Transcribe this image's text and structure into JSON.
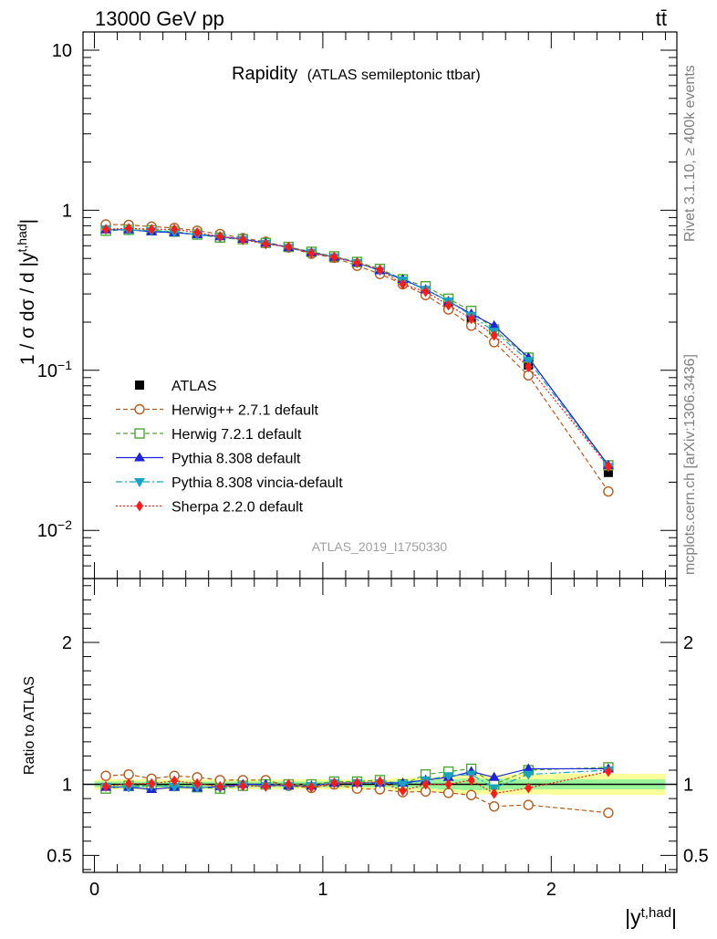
{
  "header": {
    "left": "13000 GeV pp",
    "right": "tt̄"
  },
  "side_labels": {
    "rivet": "Rivet 3.1.10, ≥ 400k events",
    "mcplots": "mcplots.cern.ch [arXiv:1306.3436]"
  },
  "plot_title": {
    "main": "Rapidity",
    "sub": "(ATLAS semileptonic ttbar)"
  },
  "analysis_id": "ATLAS_2019_I1750330",
  "colors": {
    "atlas": "#000000",
    "herwigpp": "#b35c1e",
    "herwig7": "#4da831",
    "pythia": "#1f23d9",
    "vincia": "#17a3c2",
    "sherpa": "#ff1a1a",
    "band_inner": "#9af59a",
    "band_outer": "#ffff99"
  },
  "chart_data": [
    {
      "type": "scatter",
      "panel": "main",
      "ylabel": "1 / σ dσ / d |y^{t,had}|",
      "yscale": "log",
      "ylim": [
        0.005,
        13
      ],
      "xlim": [
        -0.05,
        2.55
      ],
      "ytick_labels": [
        "10^{-2}",
        "10^{-1}",
        "1",
        "10"
      ],
      "legend_position": "lower-left",
      "x": [
        0.05,
        0.15,
        0.25,
        0.35,
        0.45,
        0.55,
        0.65,
        0.75,
        0.85,
        0.95,
        1.05,
        1.15,
        1.25,
        1.35,
        1.45,
        1.55,
        1.65,
        1.75,
        1.9,
        2.25
      ],
      "x_edges": [
        0.0,
        0.1,
        0.2,
        0.3,
        0.4,
        0.5,
        0.6,
        0.7,
        0.8,
        0.9,
        1.0,
        1.1,
        1.2,
        1.3,
        1.4,
        1.5,
        1.6,
        1.7,
        1.8,
        2.0,
        2.5
      ],
      "series": [
        {
          "name": "ATLAS",
          "key": "atlas",
          "marker": "square-filled",
          "line": "none",
          "values": [
            0.77,
            0.765,
            0.755,
            0.74,
            0.72,
            0.695,
            0.66,
            0.625,
            0.59,
            0.55,
            0.505,
            0.465,
            0.415,
            0.365,
            0.31,
            0.255,
            0.205,
            0.18,
            0.108,
            0.023
          ]
        },
        {
          "name": "Herwig++ 2.7.1 default",
          "key": "herwigpp",
          "marker": "circle-open",
          "line": "dashed",
          "values": [
            0.815,
            0.81,
            0.79,
            0.775,
            0.745,
            0.71,
            0.67,
            0.635,
            0.585,
            0.535,
            0.505,
            0.45,
            0.4,
            0.345,
            0.295,
            0.24,
            0.19,
            0.15,
            0.093,
            0.0175
          ]
        },
        {
          "name": "Herwig 7.2.1 default",
          "key": "herwig7",
          "marker": "square-open",
          "line": "dashed",
          "values": [
            0.745,
            0.755,
            0.75,
            0.735,
            0.705,
            0.675,
            0.66,
            0.625,
            0.59,
            0.55,
            0.515,
            0.475,
            0.43,
            0.37,
            0.335,
            0.28,
            0.235,
            0.18,
            0.12,
            0.0255
          ]
        },
        {
          "name": "Pythia 8.308 default",
          "key": "pythia",
          "marker": "triangle-up",
          "line": "solid",
          "values": [
            0.755,
            0.755,
            0.735,
            0.725,
            0.705,
            0.685,
            0.66,
            0.625,
            0.585,
            0.545,
            0.51,
            0.47,
            0.42,
            0.37,
            0.32,
            0.27,
            0.225,
            0.19,
            0.12,
            0.0255
          ]
        },
        {
          "name": "Pythia 8.308 vincia-default",
          "key": "vincia",
          "marker": "triangle-down",
          "line": "dashdot",
          "values": [
            0.76,
            0.75,
            0.745,
            0.73,
            0.705,
            0.675,
            0.655,
            0.62,
            0.585,
            0.545,
            0.51,
            0.47,
            0.42,
            0.365,
            0.32,
            0.27,
            0.22,
            0.175,
            0.115,
            0.025
          ]
        },
        {
          "name": "Sherpa 2.2.0 default",
          "key": "sherpa",
          "marker": "diamond",
          "line": "dotted",
          "values": [
            0.76,
            0.77,
            0.76,
            0.76,
            0.725,
            0.685,
            0.655,
            0.615,
            0.59,
            0.54,
            0.51,
            0.47,
            0.425,
            0.345,
            0.31,
            0.255,
            0.21,
            0.165,
            0.105,
            0.025
          ]
        }
      ]
    },
    {
      "type": "scatter",
      "panel": "ratio",
      "ylabel": "Ratio to ATLAS",
      "xlabel": "|y^{t,had}|",
      "ylim": [
        0.38,
        2.45
      ],
      "xlim": [
        -0.05,
        2.55
      ],
      "ytick_labels": [
        "0.5",
        "1",
        "2"
      ],
      "xtick_labels": [
        "0",
        "1",
        "2"
      ],
      "band_inner_halfwidth": [
        0.02,
        0.02,
        0.02,
        0.02,
        0.02,
        0.02,
        0.02,
        0.02,
        0.02,
        0.02,
        0.02,
        0.02,
        0.02,
        0.025,
        0.03,
        0.035,
        0.04,
        0.04,
        0.035,
        0.035
      ],
      "band_outer_halfwidth": [
        0.035,
        0.035,
        0.035,
        0.035,
        0.035,
        0.035,
        0.035,
        0.035,
        0.035,
        0.035,
        0.035,
        0.035,
        0.035,
        0.045,
        0.05,
        0.06,
        0.07,
        0.07,
        0.07,
        0.075
      ],
      "series": [
        {
          "name": "Herwig++ 2.7.1 default",
          "key": "herwigpp",
          "marker": "circle-open",
          "line": "dashed",
          "values": [
            1.06,
            1.07,
            1.04,
            1.06,
            1.05,
            1.03,
            1.03,
            1.03,
            0.99,
            0.975,
            1.0,
            0.97,
            0.965,
            0.945,
            0.95,
            0.94,
            0.925,
            0.845,
            0.855,
            0.8
          ]
        },
        {
          "name": "Herwig 7.2.1 default",
          "key": "herwig7",
          "marker": "square-open",
          "line": "dashed",
          "values": [
            0.97,
            0.99,
            0.99,
            0.99,
            0.98,
            0.97,
            0.99,
            1.0,
            1.0,
            1.0,
            1.02,
            1.02,
            1.03,
            1.0,
            1.07,
            1.09,
            1.11,
            1.0,
            1.1,
            1.12
          ]
        },
        {
          "name": "Pythia 8.308 default",
          "key": "pythia",
          "marker": "triangle-up",
          "line": "solid",
          "values": [
            0.98,
            0.98,
            0.965,
            0.98,
            0.975,
            0.985,
            1.0,
            1.0,
            0.99,
            0.99,
            1.01,
            1.01,
            1.01,
            1.01,
            1.03,
            1.05,
            1.09,
            1.05,
            1.11,
            1.11
          ]
        },
        {
          "name": "Pythia 8.308 vincia-default",
          "key": "vincia",
          "marker": "triangle-down",
          "line": "dashdot",
          "values": [
            0.985,
            0.98,
            0.99,
            0.985,
            0.98,
            0.975,
            0.99,
            0.99,
            0.99,
            0.99,
            1.01,
            1.01,
            1.01,
            1.0,
            1.03,
            1.06,
            1.07,
            0.975,
            1.07,
            1.1
          ]
        },
        {
          "name": "Sherpa 2.2.0 default",
          "key": "sherpa",
          "marker": "diamond",
          "line": "dotted",
          "values": [
            0.985,
            1.005,
            1.005,
            1.025,
            1.005,
            0.985,
            0.99,
            0.985,
            1.0,
            0.98,
            1.01,
            1.01,
            1.02,
            0.955,
            1.0,
            1.0,
            1.03,
            0.935,
            0.975,
            1.09
          ]
        }
      ]
    }
  ]
}
